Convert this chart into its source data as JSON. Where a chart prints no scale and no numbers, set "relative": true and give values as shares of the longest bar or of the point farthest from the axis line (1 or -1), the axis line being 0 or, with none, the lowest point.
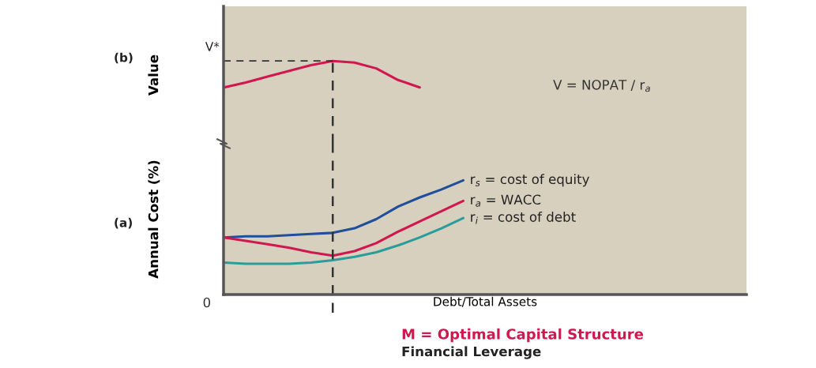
{
  "chart_data": [
    {
      "type": "line",
      "relative": true,
      "ylabel": "Value",
      "tick_labels": false,
      "line_style": "solid",
      "categories": [
        null,
        null,
        null,
        null,
        null,
        null,
        null,
        null,
        null,
        null,
        null,
        null,
        null,
        null,
        null,
        null,
        null,
        null,
        null,
        null,
        null,
        null,
        null,
        null,
        null
      ],
      "series": [
        {
          "color": "#d0174f",
          "values": [
            0.68,
            0.74,
            0.81,
            0.88,
            0.95,
            1.0,
            0.98,
            0.91,
            0.77,
            0.68,
            null,
            null,
            null,
            null,
            null,
            null,
            null,
            null,
            null,
            null,
            null,
            null,
            null,
            null,
            null
          ]
        }
      ],
      "annotations": [
        "(b)",
        "V = NOPAT / r$_{a}$",
        "V*"
      ]
    },
    {
      "type": "line",
      "relative": true,
      "ylabel": "Annual Cost (%)",
      "xlabel": "Debt/Total Assets",
      "tick_labels": false,
      "line_style": "solid",
      "categories": [
        null,
        null,
        null,
        null,
        null,
        null,
        null,
        null,
        null,
        null,
        null,
        null,
        null,
        null,
        null,
        null,
        null,
        null,
        null,
        null,
        null,
        null,
        null,
        null,
        null
      ],
      "series": [
        {
          "name": "r$_{s}$ = cost of equity",
          "color": "#1f4e9a",
          "values": [
            0.5,
            0.51,
            0.51,
            0.52,
            0.53,
            0.54,
            0.58,
            0.66,
            0.77,
            0.85,
            0.92,
            1.0,
            null,
            null,
            null,
            null,
            null,
            null,
            null,
            null,
            null,
            null,
            null,
            null,
            null
          ]
        },
        {
          "name": "r$_{a}$ = WACC",
          "color": "#d0174f",
          "values": [
            0.5,
            0.47,
            0.44,
            0.41,
            0.37,
            0.34,
            0.38,
            0.45,
            0.55,
            0.64,
            0.73,
            0.82,
            null,
            null,
            null,
            null,
            null,
            null,
            null,
            null,
            null,
            null,
            null,
            null,
            null
          ]
        },
        {
          "name": "r$_{i}$ = cost of debt",
          "color": "#2a9d9a",
          "values": [
            0.28,
            0.27,
            0.27,
            0.27,
            0.28,
            0.3,
            0.33,
            0.37,
            0.43,
            0.5,
            0.58,
            0.67,
            null,
            null,
            null,
            null,
            null,
            null,
            null,
            null,
            null,
            null,
            null,
            null,
            null
          ]
        }
      ],
      "annotations": [
        "(a)",
        "0",
        "M = Optimal Capital Structure",
        "Financial Leverage"
      ]
    }
  ]
}
